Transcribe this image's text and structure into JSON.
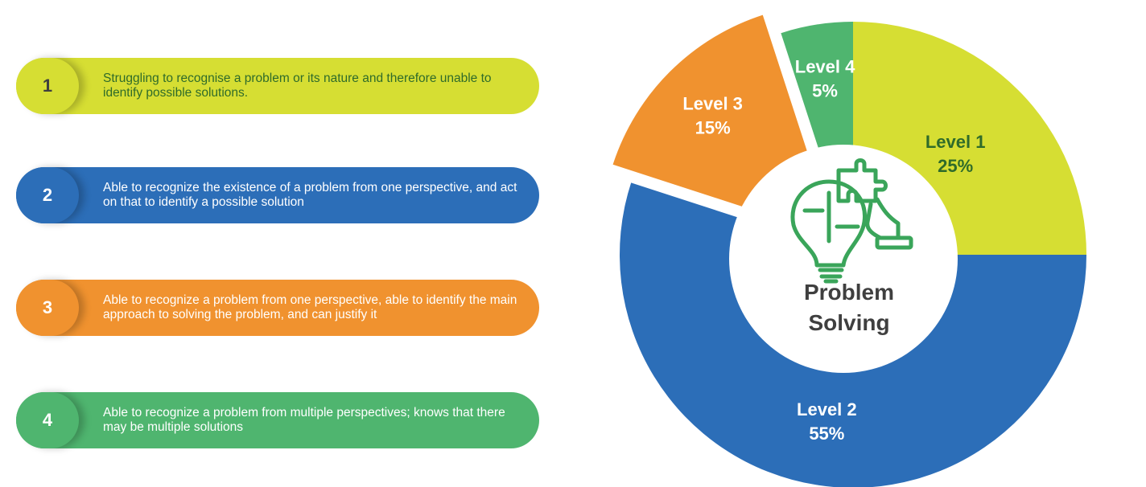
{
  "chart_data": {
    "type": "pie",
    "center_title": [
      "Problem",
      "Solving"
    ],
    "slices": [
      {
        "label": "Level 1",
        "display": "25%",
        "value": 25,
        "color": "#d6de33",
        "text_color": "#2f6b2a"
      },
      {
        "label": "Level 2",
        "display": "55%",
        "value": 55,
        "color": "#2c6eb8",
        "text_color": "#ffffff"
      },
      {
        "label": "Level 3",
        "display": "15%",
        "value": 15,
        "color": "#f0922f",
        "text_color": "#ffffff"
      },
      {
        "label": "Level 4",
        "display": "5%",
        "value": 5,
        "color": "#4fb56f",
        "text_color": "#ffffff"
      }
    ],
    "center_icon": "lightbulb-puzzle-hand-icon"
  },
  "legend": [
    {
      "number": "1",
      "text": "Struggling to recognise a problem or its nature and therefore unable to identify possible solutions.",
      "color": "#d6de33",
      "badge_text_color": "#3f3f3f",
      "text_color": "#2f6b2a"
    },
    {
      "number": "2",
      "text": "Able to recognize the existence of a problem from one perspective, and act on that to identify a possible solution",
      "color": "#2c6eb8",
      "badge_text_color": "#ffffff",
      "text_color": "#ffffff"
    },
    {
      "number": "3",
      "text": "Able to recognize a problem from one perspective, able to identify the main approach to solving the problem, and can justify it",
      "color": "#f0922f",
      "badge_text_color": "#ffffff",
      "text_color": "#ffffff"
    },
    {
      "number": "4",
      "text": "Able to recognize a problem from multiple perspectives; knows that there may be multiple solutions",
      "color": "#4fb56f",
      "badge_text_color": "#ffffff",
      "text_color": "#ffffff"
    }
  ]
}
